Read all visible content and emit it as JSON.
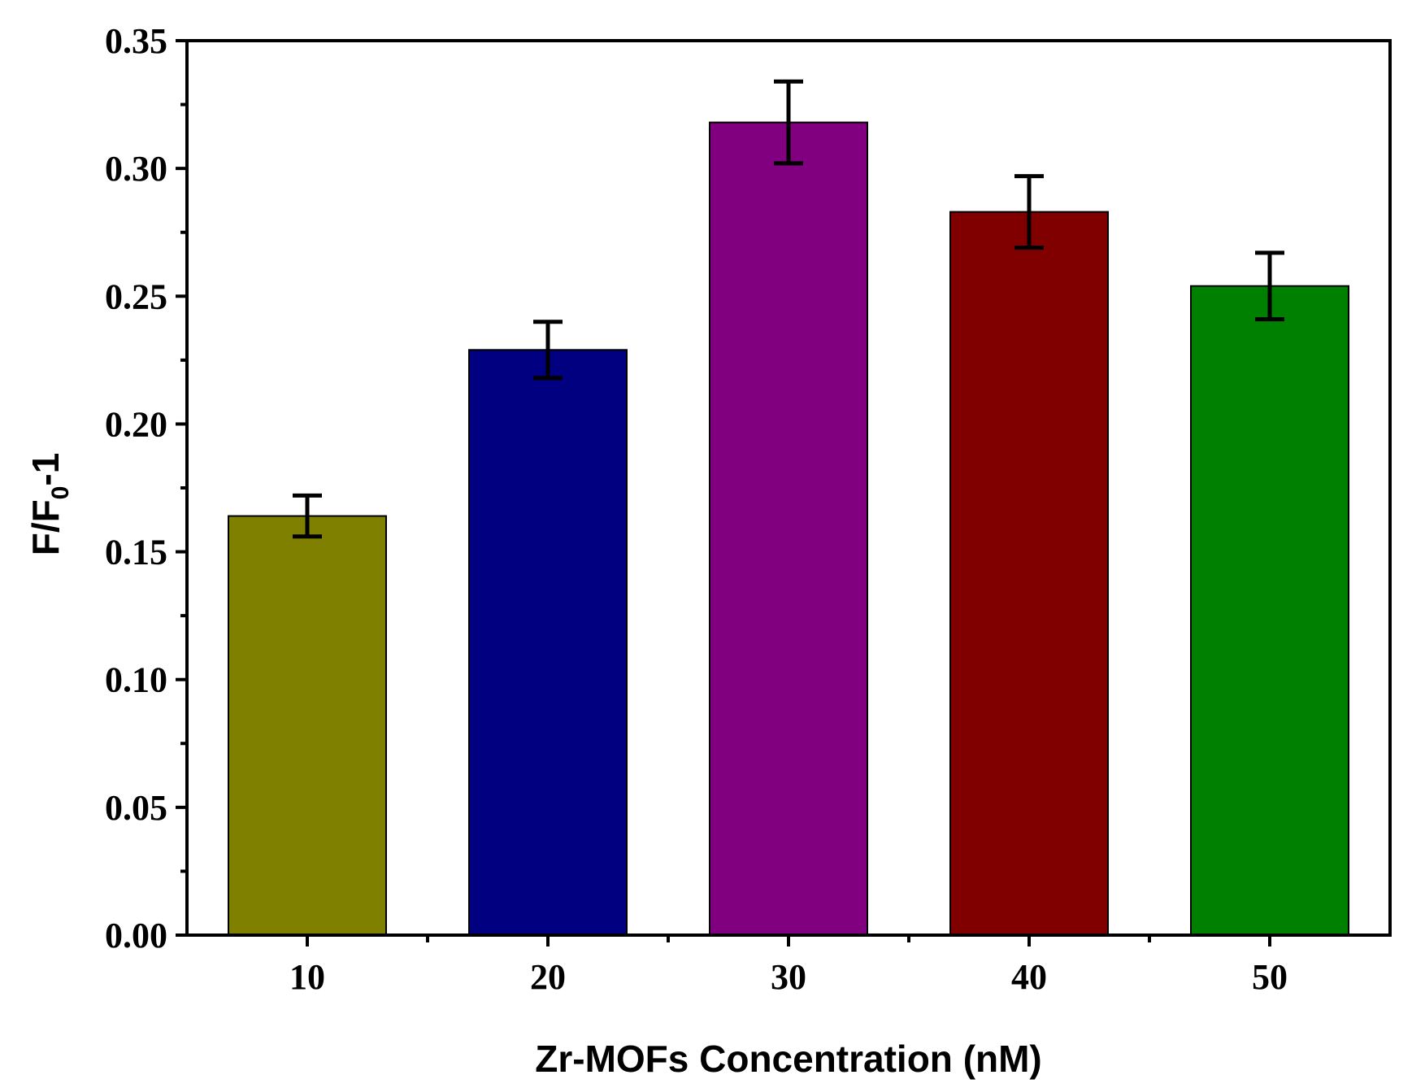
{
  "chart_data": {
    "type": "bar",
    "categories": [
      "10",
      "20",
      "30",
      "40",
      "50"
    ],
    "values": [
      0.164,
      0.229,
      0.318,
      0.283,
      0.254
    ],
    "errors": [
      0.008,
      0.011,
      0.016,
      0.014,
      0.013
    ],
    "colors": [
      "#808000",
      "#000080",
      "#800080",
      "#800000",
      "#008000"
    ],
    "title": "",
    "xlabel": "Zr-MOFs Concentration (nM)",
    "ylabel_main": "F/F",
    "ylabel_sub": "0",
    "ylabel_tail": "-1",
    "ylim": [
      0,
      0.35
    ],
    "yticks": [
      "0.00",
      "0.05",
      "0.10",
      "0.15",
      "0.20",
      "0.25",
      "0.30",
      "0.35"
    ],
    "grid": false,
    "legend": "none"
  }
}
